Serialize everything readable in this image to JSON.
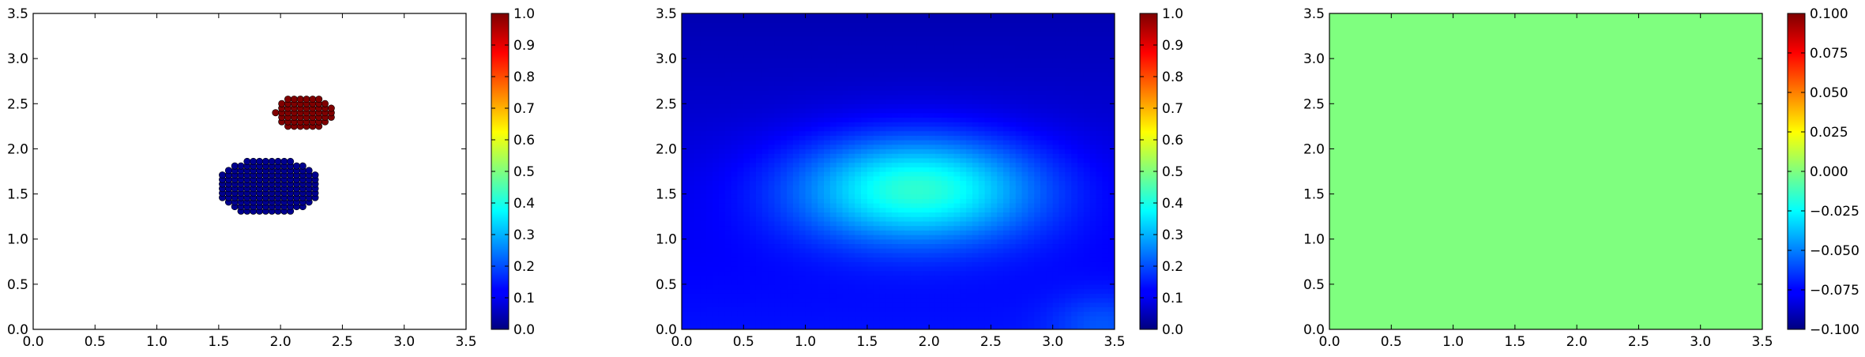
{
  "chart_data": [
    {
      "type": "scatter",
      "panel": "left",
      "xlim": [
        0.0,
        3.5
      ],
      "ylim": [
        0.0,
        3.5
      ],
      "xticks": [
        "0.0",
        "0.5",
        "1.0",
        "1.5",
        "2.0",
        "2.5",
        "3.0",
        "3.5"
      ],
      "yticks": [
        "0.0",
        "0.5",
        "1.0",
        "1.5",
        "2.0",
        "2.5",
        "3.0",
        "3.5"
      ],
      "colormap": "jet",
      "clusters": [
        {
          "label_value": 0.0,
          "color": "#00008f",
          "center": [
            1.9,
            1.58
          ],
          "radius_x": 0.42,
          "radius_y": 0.32,
          "step": 0.05
        },
        {
          "label_value": 1.0,
          "color": "#800000",
          "center": [
            2.2,
            2.4
          ],
          "radius_x": 0.24,
          "radius_y": 0.2,
          "step": 0.05
        }
      ],
      "colorbar": {
        "min": 0.0,
        "max": 1.0,
        "ticks": [
          "0.0",
          "0.1",
          "0.2",
          "0.3",
          "0.4",
          "0.5",
          "0.6",
          "0.7",
          "0.8",
          "0.9",
          "1.0"
        ]
      }
    },
    {
      "type": "heatmap",
      "panel": "middle",
      "xlim": [
        0.0,
        3.5
      ],
      "ylim": [
        0.0,
        3.5
      ],
      "xticks": [
        "0.0",
        "0.5",
        "1.0",
        "1.5",
        "2.0",
        "2.5",
        "3.0",
        "3.5"
      ],
      "yticks": [
        "0.0",
        "0.5",
        "1.0",
        "1.5",
        "2.0",
        "2.5",
        "3.0",
        "3.5"
      ],
      "colormap": "jet",
      "field": {
        "background": 0.08,
        "peak": 0.42,
        "peak_center": [
          1.9,
          1.55
        ],
        "spread_x": 0.7,
        "spread_y": 0.42,
        "base_low": 0.14,
        "base_high": 0.05
      },
      "colorbar": {
        "min": 0.0,
        "max": 1.0,
        "ticks": [
          "0.0",
          "0.1",
          "0.2",
          "0.3",
          "0.4",
          "0.5",
          "0.6",
          "0.7",
          "0.8",
          "0.9",
          "1.0"
        ]
      }
    },
    {
      "type": "heatmap",
      "panel": "right",
      "xlim": [
        0.0,
        3.5
      ],
      "ylim": [
        0.0,
        3.5
      ],
      "xticks": [
        "0.0",
        "0.5",
        "1.0",
        "1.5",
        "2.0",
        "2.5",
        "3.0",
        "3.5"
      ],
      "yticks": [
        "0.0",
        "0.5",
        "1.0",
        "1.5",
        "2.0",
        "2.5",
        "3.0",
        "3.5"
      ],
      "colormap": "jet",
      "uniform_value": 0.0,
      "fill_color": "#7fff7f",
      "colorbar": {
        "min": -0.1,
        "max": 0.1,
        "ticks": [
          "−0.100",
          "−0.075",
          "−0.050",
          "−0.025",
          "0.000",
          "0.025",
          "0.050",
          "0.075",
          "0.100"
        ]
      }
    }
  ]
}
